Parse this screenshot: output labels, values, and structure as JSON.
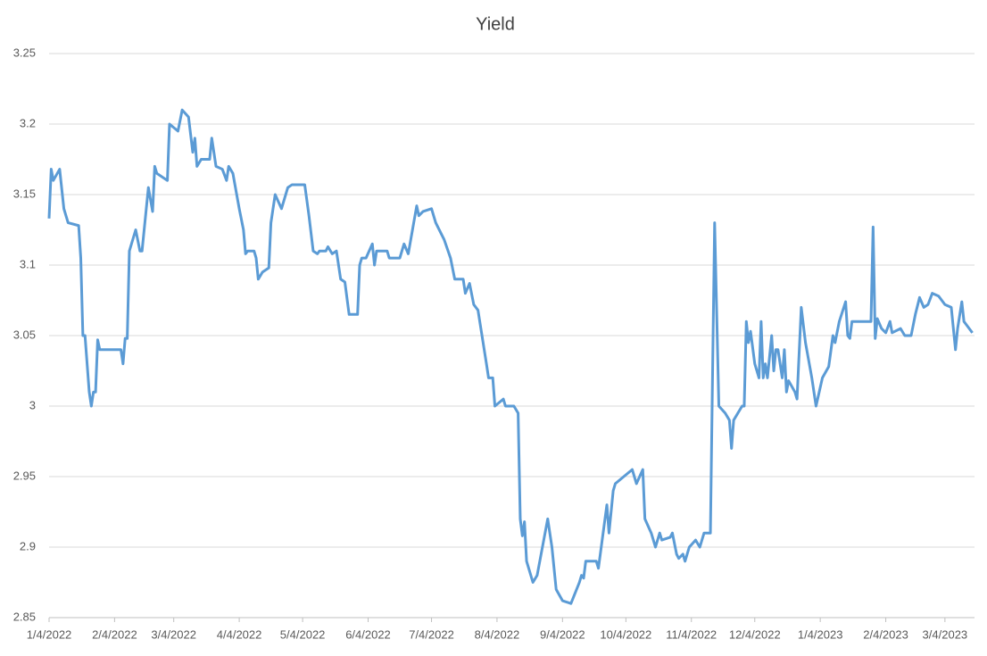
{
  "chart_data": {
    "type": "line",
    "title": "Yield",
    "color": "#5b9bd5",
    "grid": true,
    "x": [
      "1/4/2022",
      "1/5/2022",
      "1/6/2022",
      "1/9/2022",
      "1/11/2022",
      "1/13/2022",
      "1/18/2022",
      "1/19/2022",
      "1/20/2022",
      "1/21/2022",
      "1/23/2022",
      "1/24/2022",
      "1/25/2022",
      "1/26/2022",
      "1/27/2022",
      "1/28/2022",
      "2/7/2022",
      "2/8/2022",
      "2/9/2022",
      "2/10/2022",
      "2/11/2022",
      "2/14/2022",
      "2/16/2022",
      "2/17/2022",
      "2/20/2022",
      "2/22/2022",
      "2/23/2022",
      "2/24/2022",
      "3/1/2022",
      "3/2/2022",
      "3/6/2022",
      "3/8/2022",
      "3/11/2022",
      "3/13/2022",
      "3/14/2022",
      "3/15/2022",
      "3/17/2022",
      "3/21/2022",
      "3/22/2022",
      "3/24/2022",
      "3/27/2022",
      "3/29/2022",
      "3/30/2022",
      "4/1/2022",
      "4/4/2022",
      "4/6/2022",
      "4/7/2022",
      "4/8/2022",
      "4/11/2022",
      "4/12/2022",
      "4/13/2022",
      "4/15/2022",
      "4/18/2022",
      "4/19/2022",
      "4/21/2022",
      "4/24/2022",
      "4/27/2022",
      "4/29/2022",
      "5/5/2022",
      "5/7/2022",
      "5/9/2022",
      "5/11/2022",
      "5/12/2022",
      "5/15/2022",
      "5/16/2022",
      "5/18/2022",
      "5/20/2022",
      "5/22/2022",
      "5/24/2022",
      "5/26/2022",
      "5/30/2022",
      "5/31/2022",
      "6/1/2022",
      "6/3/2022",
      "6/6/2022",
      "6/7/2022",
      "6/8/2022",
      "6/13/2022",
      "6/14/2022",
      "6/19/2022",
      "6/21/2022",
      "6/23/2022",
      "6/25/2022",
      "6/27/2022",
      "6/28/2022",
      "6/30/2022",
      "7/4/2022",
      "7/6/2022",
      "7/10/2022",
      "7/13/2022",
      "7/15/2022",
      "7/19/2022",
      "7/20/2022",
      "7/22/2022",
      "7/24/2022",
      "7/26/2022",
      "7/30/2022",
      "7/31/2022",
      "8/2/2022",
      "8/3/2022",
      "8/7/2022",
      "8/8/2022",
      "8/12/2022",
      "8/14/2022",
      "8/15/2022",
      "8/16/2022",
      "8/17/2022",
      "8/18/2022",
      "8/21/2022",
      "8/23/2022",
      "8/28/2022",
      "8/30/2022",
      "9/1/2022",
      "9/4/2022",
      "9/8/2022",
      "9/12/2022",
      "9/13/2022",
      "9/14/2022",
      "9/15/2022",
      "9/20/2022",
      "9/21/2022",
      "9/25/2022",
      "9/26/2022",
      "9/28/2022",
      "9/29/2022",
      "10/7/2022",
      "10/9/2022",
      "10/12/2022",
      "10/13/2022",
      "10/16/2022",
      "10/18/2022",
      "10/20/2022",
      "10/21/2022",
      "10/25/2022",
      "10/26/2022",
      "10/28/2022",
      "10/29/2022",
      "10/31/2022",
      "11/1/2022",
      "11/3/2022",
      "11/6/2022",
      "11/8/2022",
      "11/10/2022",
      "11/13/2022",
      "11/15/2022",
      "11/17/2022",
      "11/20/2022",
      "11/22/2022",
      "11/23/2022",
      "11/24/2022",
      "11/26/2022",
      "11/28/2022",
      "11/29/2022",
      "11/30/2022",
      "12/1/2022",
      "12/2/2022",
      "12/4/2022",
      "12/6/2022",
      "12/7/2022",
      "12/8/2022",
      "12/9/2022",
      "12/10/2022",
      "12/12/2022",
      "12/13/2022",
      "12/14/2022",
      "12/15/2022",
      "12/17/2022",
      "12/18/2022",
      "12/19/2022",
      "12/20/2022",
      "12/23/2022",
      "12/24/2022",
      "12/26/2022",
      "12/28/2022",
      "12/31/2022",
      "1/2/2023",
      "1/5/2023",
      "1/8/2023",
      "1/10/2023",
      "1/11/2023",
      "1/13/2023",
      "1/16/2023",
      "1/17/2023",
      "1/18/2023",
      "1/19/2023",
      "1/28/2023",
      "1/29/2023",
      "1/30/2023",
      "1/31/2023",
      "2/2/2023",
      "2/4/2023",
      "2/6/2023",
      "2/7/2023",
      "2/11/2023",
      "2/13/2023",
      "2/16/2023",
      "2/18/2023",
      "2/20/2023",
      "2/22/2023",
      "2/24/2023",
      "2/26/2023",
      "3/1/2023",
      "3/4/2023",
      "3/7/2023",
      "3/9/2023",
      "3/10/2023",
      "3/12/2023",
      "3/13/2023",
      "3/14/2023",
      "3/17/2023"
    ],
    "values": [
      3.133,
      3.168,
      3.16,
      3.168,
      3.14,
      3.13,
      3.128,
      3.105,
      3.05,
      3.05,
      3.01,
      3.0,
      3.01,
      3.01,
      3.047,
      3.04,
      3.04,
      3.03,
      3.048,
      3.048,
      3.11,
      3.125,
      3.11,
      3.11,
      3.155,
      3.138,
      3.17,
      3.165,
      3.16,
      3.2,
      3.195,
      3.21,
      3.205,
      3.18,
      3.19,
      3.17,
      3.175,
      3.175,
      3.19,
      3.17,
      3.168,
      3.16,
      3.17,
      3.165,
      3.14,
      3.125,
      3.108,
      3.11,
      3.11,
      3.105,
      3.09,
      3.095,
      3.098,
      3.13,
      3.15,
      3.14,
      3.155,
      3.157,
      3.157,
      3.135,
      3.11,
      3.108,
      3.11,
      3.11,
      3.113,
      3.108,
      3.11,
      3.09,
      3.088,
      3.065,
      3.065,
      3.1,
      3.105,
      3.105,
      3.115,
      3.1,
      3.11,
      3.11,
      3.105,
      3.105,
      3.115,
      3.108,
      3.125,
      3.142,
      3.135,
      3.138,
      3.14,
      3.13,
      3.118,
      3.105,
      3.09,
      3.09,
      3.08,
      3.087,
      3.072,
      3.068,
      3.03,
      3.02,
      3.02,
      3.0,
      3.005,
      3.0,
      3.0,
      2.995,
      2.92,
      2.908,
      2.918,
      2.89,
      2.875,
      2.88,
      2.92,
      2.9,
      2.87,
      2.862,
      2.86,
      2.875,
      2.88,
      2.878,
      2.89,
      2.89,
      2.885,
      2.93,
      2.91,
      2.94,
      2.945,
      2.955,
      2.945,
      2.955,
      2.92,
      2.91,
      2.9,
      2.91,
      2.905,
      2.907,
      2.91,
      2.895,
      2.892,
      2.895,
      2.89,
      2.9,
      2.905,
      2.9,
      2.91,
      2.91,
      3.13,
      3.0,
      2.995,
      2.99,
      2.97,
      2.99,
      2.995,
      3.0,
      3.0,
      3.06,
      3.045,
      3.053,
      3.03,
      3.02,
      3.06,
      3.02,
      3.03,
      3.02,
      3.05,
      3.025,
      3.04,
      3.04,
      3.02,
      3.04,
      3.01,
      3.018,
      3.01,
      3.005,
      3.07,
      3.045,
      3.02,
      3.0,
      3.02,
      3.028,
      3.05,
      3.045,
      3.06,
      3.074,
      3.05,
      3.048,
      3.06,
      3.06,
      3.127,
      3.048,
      3.062,
      3.055,
      3.052,
      3.06,
      3.052,
      3.055,
      3.05,
      3.05,
      3.065,
      3.077,
      3.07,
      3.072,
      3.08,
      3.078,
      3.072,
      3.07,
      3.04,
      3.055,
      3.074,
      3.06,
      3.058,
      3.052
    ],
    "xlim": [
      "1/4/2022",
      "3/18/2023"
    ],
    "xticks": [
      "1/4/2022",
      "2/4/2022",
      "3/4/2022",
      "4/4/2022",
      "5/4/2022",
      "6/4/2022",
      "7/4/2022",
      "8/4/2022",
      "9/4/2022",
      "10/4/2022",
      "11/4/2022",
      "12/4/2022",
      "1/4/2023",
      "2/4/2023",
      "3/4/2023"
    ],
    "ylim": [
      2.85,
      3.25
    ],
    "yticks": [
      2.85,
      2.9,
      2.95,
      3,
      3.05,
      3.1,
      3.15,
      3.2,
      3.25
    ]
  }
}
